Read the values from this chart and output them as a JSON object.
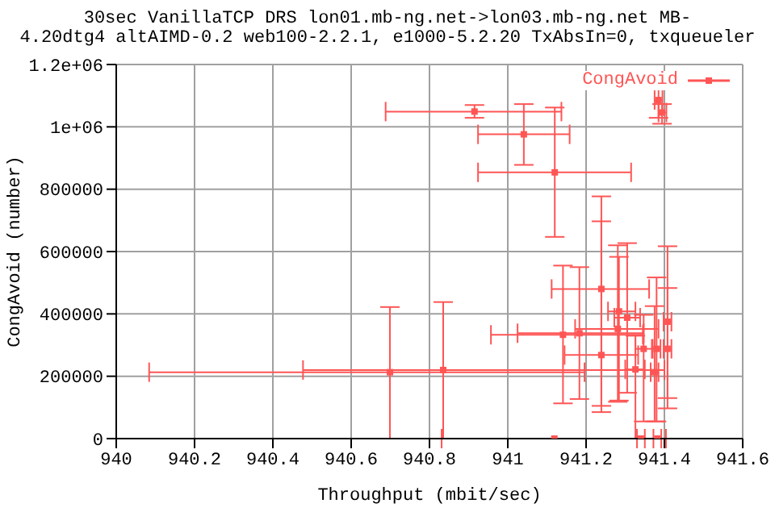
{
  "chart_data": {
    "type": "scatter",
    "title": "30sec VanillaTCP DRS lon01.mb-ng.net->lon03.mb-ng.net MB-\n4.20dtg4 altAIMD-0.2 web100-2.2.1, e1000-5.2.20 TxAbsIn=0, txqueueler",
    "xlabel": "Throughput (mbit/sec)",
    "ylabel": "CongAvoid (number)",
    "x": [
      940.915,
      941.041,
      941.12,
      941.385,
      941.394,
      940.699,
      940.835,
      941.141,
      941.183,
      941.239,
      941.239,
      941.284,
      941.305,
      941.281,
      941.347,
      941.38,
      941.408,
      941.408,
      941.375,
      941.326,
      941.119,
      941.34,
      941.382
    ],
    "series": [
      {
        "name": "CongAvoid",
        "color": "#ff5555",
        "values": [
          1049000,
          976000,
          854000,
          1086000,
          1046000,
          213000,
          220000,
          333000,
          338000,
          480000,
          268000,
          408000,
          388000,
          352000,
          288000,
          288000,
          375000,
          288000,
          213000,
          222000,
          0,
          0,
          0
        ],
        "errors": [
          [
            1029000,
            1070000
          ],
          [
            878000,
            1073000
          ],
          [
            647000,
            1062000
          ],
          [
            1029000,
            1135000
          ],
          [
            1010000,
            1073000
          ],
          [
            0,
            422000
          ],
          [
            0,
            438000
          ],
          [
            113000,
            555000
          ],
          [
            127000,
            550000
          ],
          [
            105000,
            777000
          ],
          [
            85000,
            697000
          ],
          [
            122000,
            583000
          ],
          [
            147000,
            627000
          ],
          [
            118000,
            620000
          ],
          [
            55000,
            397000
          ],
          [
            55000,
            517000
          ],
          [
            97000,
            617000
          ],
          [
            130000,
            483000
          ],
          [
            55000,
            425000
          ],
          [
            0,
            330000
          ],
          null,
          null,
          null
        ],
        "xerrors": [
          [
            940.688,
            941.137
          ],
          [
            940.924,
            941.158
          ],
          [
            940.924,
            941.315
          ],
          [
            941.375,
            941.395
          ],
          [
            941.385,
            941.405
          ],
          [
            940.084,
            941.196
          ],
          [
            940.477,
            941.4
          ],
          [
            940.957,
            941.345
          ],
          [
            941.025,
            941.347
          ],
          [
            941.112,
            941.361
          ],
          [
            941.145,
            941.333
          ],
          [
            941.256,
            941.326
          ],
          [
            941.272,
            941.338
          ],
          [
            941.172,
            941.385
          ],
          [
            941.326,
            941.368
          ],
          [
            941.37,
            941.39
          ],
          [
            941.398,
            941.418
          ],
          [
            941.398,
            941.418
          ],
          [
            941.365,
            941.385
          ],
          [
            941.3,
            941.35
          ],
          [
            940.831,
            941.404
          ],
          [
            941.33,
            941.35
          ],
          [
            941.372,
            941.392
          ]
        ]
      }
    ],
    "xlim": [
      940,
      941.6
    ],
    "xticks": [
      940,
      940.2,
      940.4,
      940.6,
      940.8,
      941,
      941.2,
      941.4,
      941.6
    ],
    "ylim": [
      0,
      1200000
    ],
    "yticks": [
      0,
      200000,
      400000,
      600000,
      800000,
      {
        "value": 1000000,
        "label": "1e+06"
      },
      {
        "value": 1200000,
        "label": "1.2e+06"
      }
    ],
    "grid": true,
    "legend": "top right",
    "marker": "square"
  }
}
